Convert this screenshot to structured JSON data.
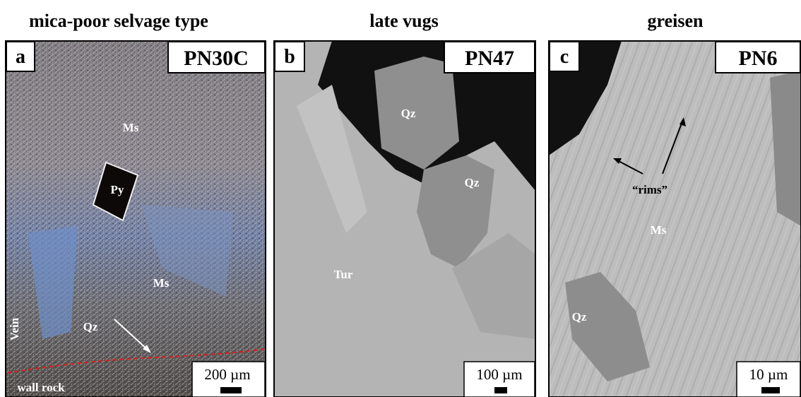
{
  "panels": [
    {
      "title": "mica-poor selvage type",
      "letter": "a",
      "sample": "PN30C",
      "scale": "200 µm",
      "labels": [
        "Ms",
        "Py",
        "Ms",
        "Qz",
        "Vein",
        "wall rock"
      ]
    },
    {
      "title": "late vugs",
      "letter": "b",
      "sample": "PN47",
      "scale": "100 µm",
      "labels": [
        "Qz",
        "Qz",
        "Tur"
      ]
    },
    {
      "title": "greisen",
      "letter": "c",
      "sample": "PN6",
      "scale": "10 µm",
      "labels": [
        "“rims”",
        "Ms",
        "Qz"
      ]
    }
  ]
}
